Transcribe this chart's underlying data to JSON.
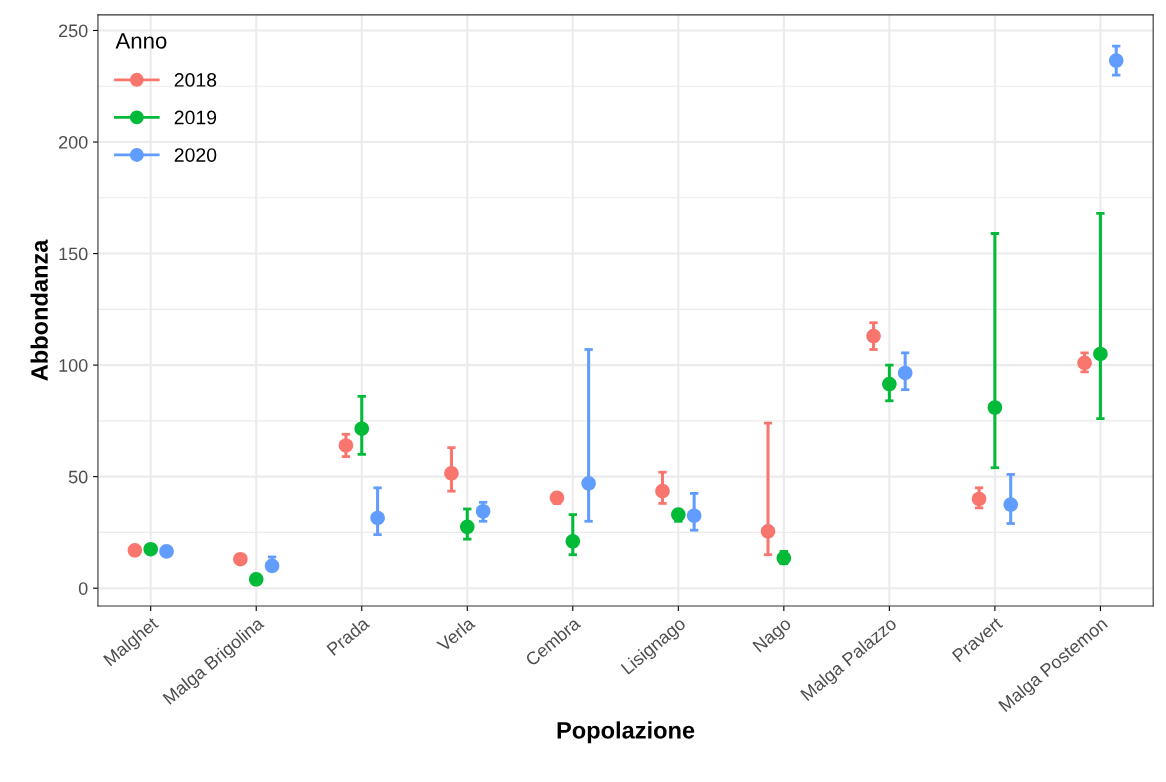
{
  "chart_data": {
    "type": "scatter",
    "xlabel": "Popolazione",
    "ylabel": "Abbondanza",
    "legend_title": "Anno",
    "legend": "top left",
    "grid": true,
    "marker": "circle",
    "categories": [
      "Malghet",
      "Malga Brigolina",
      "Prada",
      "Verla",
      "Cembra",
      "Lisignago",
      "Nago",
      "Malga Palazzo",
      "Pravert",
      "Malga Postemon"
    ],
    "ylim": [
      -8,
      257
    ],
    "yticks": [
      0,
      50,
      100,
      150,
      200,
      250
    ],
    "series": [
      {
        "name": "2018",
        "color": "#f8766d",
        "values": [
          17,
          13,
          64,
          51.5,
          40.5,
          43.5,
          25.5,
          113,
          40,
          101
        ],
        "errors": [
          null,
          null,
          [
            59,
            69
          ],
          [
            43.5,
            63
          ],
          [
            38,
            42.5
          ],
          [
            38,
            52
          ],
          [
            15,
            74
          ],
          [
            107,
            119
          ],
          [
            36,
            45
          ],
          [
            97,
            105.5
          ]
        ]
      },
      {
        "name": "2019",
        "color": "#00ba38",
        "values": [
          17.5,
          4,
          71.5,
          27.5,
          21,
          33,
          13.5,
          91.5,
          81,
          105
        ],
        "errors": [
          null,
          null,
          [
            60,
            86
          ],
          [
            22,
            35.5
          ],
          [
            15,
            33
          ],
          [
            30,
            35
          ],
          [
            11,
            16.5
          ],
          [
            84,
            100
          ],
          [
            54,
            159
          ],
          [
            76,
            168
          ]
        ]
      },
      {
        "name": "2020",
        "color": "#619cff",
        "values": [
          16.5,
          10,
          31.5,
          34.5,
          47,
          32.5,
          null,
          96.5,
          37.5,
          236.5
        ],
        "errors": [
          null,
          [
            8,
            14
          ],
          [
            24,
            45
          ],
          [
            30,
            38.5
          ],
          [
            30,
            107
          ],
          [
            26,
            42.5
          ],
          null,
          [
            89,
            105.5
          ],
          [
            29,
            51
          ],
          [
            230,
            243
          ]
        ]
      }
    ]
  }
}
